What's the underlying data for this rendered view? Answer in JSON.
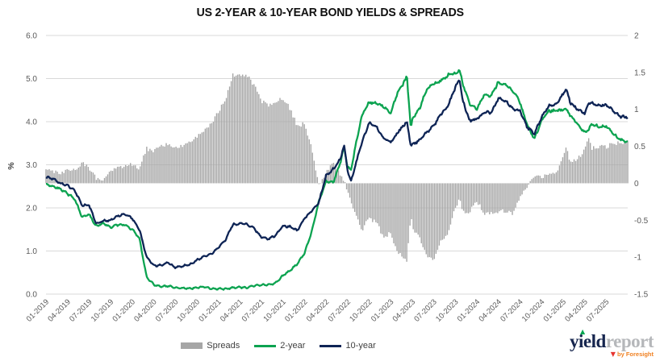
{
  "title": "US 2-YEAR & 10-YEAR BOND YIELDS & SPREADS",
  "legend": {
    "items": [
      {
        "label": "Spreads",
        "type": "bar",
        "color": "#a6a6a6"
      },
      {
        "label": "2-year",
        "type": "line",
        "color": "#0ca350"
      },
      {
        "label": "10-year",
        "type": "line",
        "color": "#0e2455"
      }
    ],
    "position": "bottom-center"
  },
  "logo": {
    "brand_primary": "yield",
    "brand_secondary": "report",
    "tagline": "by Foresight",
    "up_triangle_color": "#00a651",
    "down_triangle_color": "#e63430"
  },
  "colors": {
    "bars": "#a6a6a6",
    "line_2yr": "#0ca350",
    "line_10yr": "#0e2455",
    "gridline": "#d9d9d9",
    "axis_text": "#595959",
    "background": "#ffffff"
  },
  "chart_data": {
    "type": "combo-bar-line",
    "title": "US 2-YEAR & 10-YEAR BOND YIELDS & SPREADS",
    "left_axis": {
      "title": "%",
      "ticks": [
        "6.0",
        "5.0",
        "4.0",
        "3.0",
        "2.0",
        "1.0",
        "0.0"
      ],
      "range": [
        0,
        6
      ],
      "gridlines": true
    },
    "right_axis": {
      "title": "",
      "ticks": [
        "2",
        "1.5",
        "1",
        "0.5",
        "0",
        "-0.5",
        "-1",
        "-1.5"
      ],
      "range": [
        -1.5,
        2
      ]
    },
    "x_tick_labels": [
      "01-2019",
      "04-2019",
      "07-2019",
      "10-2019",
      "01-2020",
      "04-2020",
      "07-2020",
      "10-2020",
      "01-2021",
      "04-2021",
      "07-2021",
      "10-2021",
      "01-2022",
      "04-2022",
      "07-2022",
      "10-2022",
      "01-2023",
      "04-2023",
      "07-2023",
      "10-2023",
      "01-2024",
      "04-2024",
      "07-2024",
      "10-2024",
      "01-2025",
      "04-2025",
      "07-2025"
    ],
    "x_tick_month_index": [
      0,
      3,
      6,
      9,
      12,
      15,
      18,
      21,
      24,
      27,
      30,
      33,
      36,
      39,
      42,
      45,
      48,
      51,
      54,
      57,
      60,
      63,
      66,
      69,
      72,
      75,
      78
    ],
    "x_unit": "months since 2019-01 (fractional values = intra-month points); data extends to ~2025-10",
    "x_range": [
      0,
      81
    ],
    "x": [
      0,
      1,
      2,
      3,
      4,
      5,
      6,
      7,
      8,
      9,
      10,
      11,
      12,
      13,
      14,
      15,
      16,
      17,
      18,
      19,
      20,
      21,
      22,
      23,
      24,
      25,
      26,
      27,
      28,
      29,
      30,
      31,
      32,
      33,
      34,
      35,
      36,
      37,
      38,
      39,
      40,
      41,
      41.5,
      42,
      42.5,
      43,
      44,
      45,
      46,
      47,
      48,
      49,
      50,
      50.25,
      50.8,
      51,
      52,
      53,
      54,
      55,
      56,
      57,
      57.6,
      58,
      59,
      60,
      61,
      62,
      63,
      64,
      65,
      66,
      67,
      68,
      69,
      70,
      71,
      72,
      72.4,
      73,
      74,
      75,
      75.5,
      76,
      77,
      78,
      79,
      80,
      81
    ],
    "series": [
      {
        "name": "Spreads",
        "type": "bar",
        "axis": "right",
        "color": "#a6a6a6",
        "values": [
          0.17,
          0.17,
          0.13,
          0.2,
          0.19,
          0.27,
          0.21,
          0.06,
          0.05,
          0.16,
          0.2,
          0.25,
          0.26,
          0.2,
          0.47,
          0.44,
          0.5,
          0.54,
          0.47,
          0.51,
          0.55,
          0.64,
          0.7,
          0.8,
          0.96,
          1.14,
          1.46,
          1.48,
          1.47,
          1.32,
          1.11,
          1.06,
          1.11,
          1.15,
          1.01,
          0.77,
          0.81,
          0.48,
          -0.02,
          0.13,
          0.3,
          0.09,
          0.05,
          -0.1,
          -0.26,
          -0.4,
          -0.63,
          -0.47,
          -0.53,
          -0.73,
          -0.67,
          -0.95,
          -1.0,
          -1.09,
          -0.4,
          -0.59,
          -0.73,
          -1.0,
          -1.05,
          -0.78,
          -0.7,
          -0.32,
          -0.22,
          -0.4,
          -0.38,
          -0.24,
          -0.41,
          -0.39,
          -0.38,
          -0.37,
          -0.41,
          -0.2,
          -0.05,
          0.12,
          0.08,
          0.11,
          0.14,
          0.36,
          0.48,
          0.3,
          0.33,
          0.45,
          0.62,
          0.47,
          0.5,
          0.49,
          0.54,
          0.54,
          0.58
        ]
      },
      {
        "name": "2-year",
        "type": "line",
        "axis": "left",
        "color": "#0ca350",
        "values": [
          2.55,
          2.5,
          2.44,
          2.33,
          2.21,
          1.8,
          1.85,
          1.57,
          1.65,
          1.55,
          1.61,
          1.61,
          1.5,
          1.3,
          0.4,
          0.22,
          0.17,
          0.19,
          0.15,
          0.14,
          0.13,
          0.15,
          0.17,
          0.13,
          0.12,
          0.12,
          0.15,
          0.16,
          0.15,
          0.2,
          0.21,
          0.22,
          0.26,
          0.43,
          0.55,
          0.7,
          0.95,
          1.45,
          2.15,
          2.62,
          2.6,
          3.05,
          3.42,
          2.95,
          2.88,
          3.35,
          4.15,
          4.45,
          4.42,
          4.35,
          4.2,
          4.7,
          4.95,
          5.07,
          3.85,
          4.05,
          4.3,
          4.75,
          4.88,
          4.95,
          5.08,
          5.12,
          5.2,
          4.9,
          4.4,
          4.3,
          4.62,
          4.6,
          4.92,
          4.85,
          4.72,
          4.45,
          3.92,
          3.6,
          4.02,
          4.25,
          4.25,
          4.27,
          4.3,
          4.15,
          3.95,
          3.75,
          3.8,
          3.95,
          3.88,
          3.9,
          3.72,
          3.58,
          3.52
        ]
      },
      {
        "name": "10-year",
        "type": "line",
        "axis": "left",
        "color": "#0e2455",
        "values": [
          2.72,
          2.67,
          2.57,
          2.53,
          2.4,
          2.07,
          2.06,
          1.63,
          1.7,
          1.71,
          1.81,
          1.86,
          1.76,
          1.5,
          0.87,
          0.66,
          0.67,
          0.73,
          0.62,
          0.65,
          0.68,
          0.79,
          0.87,
          0.93,
          1.08,
          1.26,
          1.61,
          1.64,
          1.62,
          1.52,
          1.32,
          1.28,
          1.37,
          1.58,
          1.56,
          1.47,
          1.76,
          1.93,
          2.13,
          2.75,
          2.9,
          3.14,
          3.47,
          2.85,
          2.62,
          2.95,
          3.52,
          3.98,
          3.89,
          3.62,
          3.53,
          3.75,
          3.95,
          3.98,
          3.45,
          3.46,
          3.57,
          3.75,
          3.9,
          4.17,
          4.38,
          4.8,
          4.98,
          4.5,
          4.02,
          4.06,
          4.21,
          4.21,
          4.54,
          4.48,
          4.31,
          4.25,
          3.87,
          3.72,
          4.1,
          4.36,
          4.39,
          4.63,
          4.78,
          4.45,
          4.28,
          4.2,
          4.42,
          4.42,
          4.38,
          4.39,
          4.26,
          4.12,
          4.1
        ]
      }
    ]
  }
}
